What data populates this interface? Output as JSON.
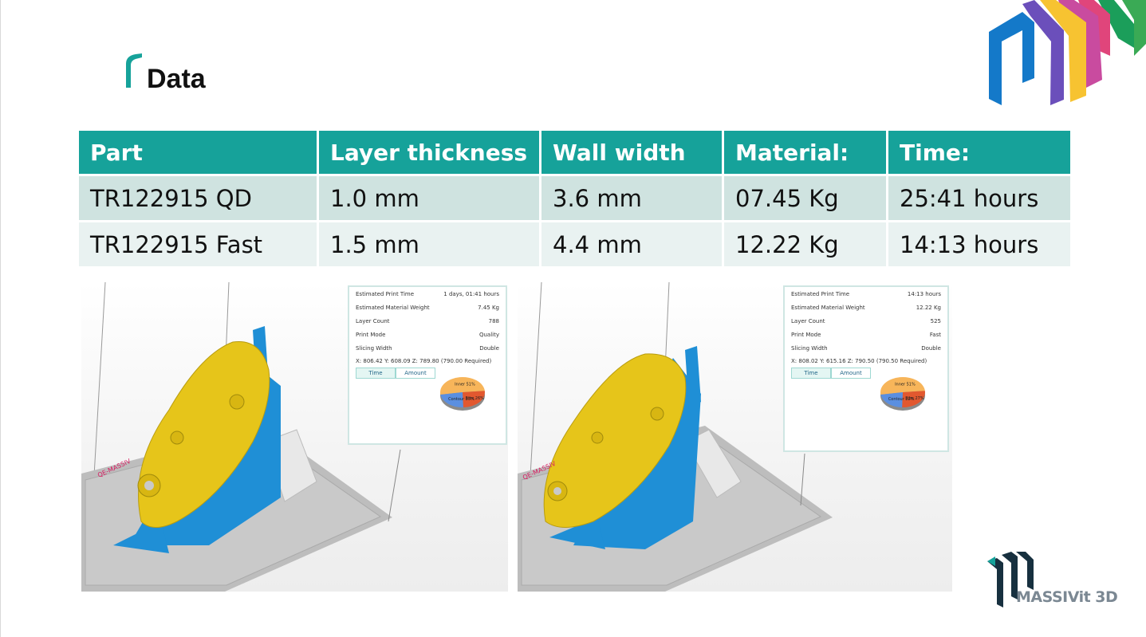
{
  "slide": {
    "title": "Data",
    "colors": {
      "accent": "#16a29a",
      "row_odd": "#cfe3e0",
      "row_even": "#e9f2f1"
    }
  },
  "table": {
    "headers": [
      "Part",
      "Layer thickness",
      "Wall width",
      "Material:",
      "Time:"
    ],
    "rows": [
      [
        "TR122915 QD",
        "1.0 mm",
        "3.6 mm",
        "07.45 Kg",
        "25:41 hours"
      ],
      [
        "TR122915 Fast",
        "1.5 mm",
        "4.4 mm",
        "12.22 Kg",
        "14:13 hours"
      ]
    ]
  },
  "screens": [
    {
      "stats": [
        {
          "label": "Estimated Print Time",
          "value": "1 days, 01:41 hours"
        },
        {
          "label": "Estimated Material Weight",
          "value": "7.45 Kg"
        },
        {
          "label": "Layer Count",
          "value": "788"
        },
        {
          "label": "Print Mode",
          "value": "Quality"
        },
        {
          "label": "Slicing Width",
          "value": "Double"
        }
      ],
      "coords": "X: 806.42  Y: 608.09  Z: 789.80 (790.00 Required)",
      "tabs": [
        "Time",
        "Amount"
      ],
      "pie": [
        {
          "label": "Inner 51%",
          "value": 51,
          "color": "#f7b55a"
        },
        {
          "label": "Ribs 26%",
          "value": 26,
          "color": "#e2582f"
        },
        {
          "label": "Contour 23%",
          "value": 23,
          "color": "#5b8fe0"
        }
      ]
    },
    {
      "stats": [
        {
          "label": "Estimated Print Time",
          "value": "14:13 hours"
        },
        {
          "label": "Estimated Material Weight",
          "value": "12.22 Kg"
        },
        {
          "label": "Layer Count",
          "value": "525"
        },
        {
          "label": "Print Mode",
          "value": "Fast"
        },
        {
          "label": "Slicing Width",
          "value": "Double"
        }
      ],
      "coords": "X: 808.02  Y: 615.16  Z: 790.50 (790.50 Required)",
      "tabs": [
        "Time",
        "Amount"
      ],
      "pie": [
        {
          "label": "Inner 51%",
          "value": 51,
          "color": "#f7b55a"
        },
        {
          "label": "Ribs 27%",
          "value": 27,
          "color": "#e2582f"
        },
        {
          "label": "Contour 22%",
          "value": 22,
          "color": "#5b8fe0"
        }
      ]
    }
  ],
  "brand": {
    "name": "MASSIVit 3D",
    "icon": "massivit-logo-icon"
  }
}
